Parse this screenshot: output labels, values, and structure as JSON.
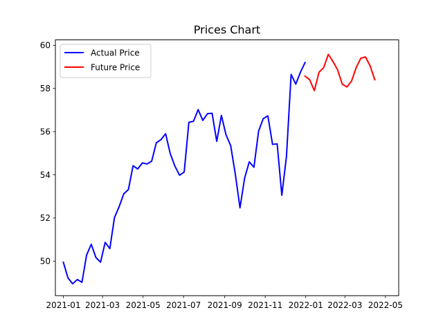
{
  "chart_data": {
    "type": "line",
    "title": "Prices Chart",
    "xlabel": "",
    "ylabel": "",
    "x_ticks": [
      "2021-01",
      "2021-03",
      "2021-05",
      "2021-07",
      "2021-09",
      "2021-11",
      "2022-01",
      "2022-03",
      "2022-05"
    ],
    "y_ticks": [
      "50",
      "52",
      "54",
      "56",
      "58",
      "60"
    ],
    "xlim": [
      "2020-12-20",
      "2022-05-21"
    ],
    "ylim": [
      48.4,
      60.25
    ],
    "grid": false,
    "legend_position": "upper-left",
    "series": [
      {
        "name": "Actual Price",
        "color": "#0000ff",
        "points": [
          [
            "2021-01-01",
            49.95
          ],
          [
            "2021-01-08",
            49.22
          ],
          [
            "2021-01-15",
            48.95
          ],
          [
            "2021-01-22",
            49.15
          ],
          [
            "2021-01-29",
            49.02
          ],
          [
            "2021-02-05",
            50.28
          ],
          [
            "2021-02-12",
            50.78
          ],
          [
            "2021-02-19",
            50.17
          ],
          [
            "2021-02-26",
            49.95
          ],
          [
            "2021-03-05",
            50.87
          ],
          [
            "2021-03-12",
            50.58
          ],
          [
            "2021-03-19",
            52.02
          ],
          [
            "2021-03-26",
            52.52
          ],
          [
            "2021-04-02",
            53.12
          ],
          [
            "2021-04-09",
            53.32
          ],
          [
            "2021-04-16",
            54.42
          ],
          [
            "2021-04-23",
            54.27
          ],
          [
            "2021-04-30",
            54.55
          ],
          [
            "2021-05-07",
            54.5
          ],
          [
            "2021-05-14",
            54.63
          ],
          [
            "2021-05-21",
            55.48
          ],
          [
            "2021-05-28",
            55.63
          ],
          [
            "2021-06-04",
            55.9
          ],
          [
            "2021-06-11",
            54.98
          ],
          [
            "2021-06-18",
            54.4
          ],
          [
            "2021-06-25",
            53.98
          ],
          [
            "2021-07-02",
            54.13
          ],
          [
            "2021-07-09",
            56.43
          ],
          [
            "2021-07-16",
            56.48
          ],
          [
            "2021-07-23",
            57.02
          ],
          [
            "2021-07-30",
            56.52
          ],
          [
            "2021-08-06",
            56.83
          ],
          [
            "2021-08-13",
            56.85
          ],
          [
            "2021-08-20",
            55.55
          ],
          [
            "2021-08-27",
            56.75
          ],
          [
            "2021-09-03",
            55.85
          ],
          [
            "2021-09-10",
            55.35
          ],
          [
            "2021-09-17",
            54.02
          ],
          [
            "2021-09-24",
            52.47
          ],
          [
            "2021-10-01",
            53.85
          ],
          [
            "2021-10-08",
            54.6
          ],
          [
            "2021-10-15",
            54.35
          ],
          [
            "2021-10-22",
            56.02
          ],
          [
            "2021-10-29",
            56.6
          ],
          [
            "2021-11-05",
            56.73
          ],
          [
            "2021-11-12",
            55.41
          ],
          [
            "2021-11-19",
            55.43
          ],
          [
            "2021-11-26",
            53.05
          ],
          [
            "2021-12-03",
            54.85
          ],
          [
            "2021-12-10",
            58.65
          ],
          [
            "2021-12-17",
            58.2
          ],
          [
            "2021-12-24",
            58.75
          ],
          [
            "2021-12-31",
            59.2
          ]
        ]
      },
      {
        "name": "Future Price",
        "color": "#ff0000",
        "points": [
          [
            "2021-12-31",
            58.57
          ],
          [
            "2022-01-07",
            58.4
          ],
          [
            "2022-01-14",
            57.9
          ],
          [
            "2022-01-21",
            58.75
          ],
          [
            "2022-01-28",
            58.96
          ],
          [
            "2022-02-04",
            59.58
          ],
          [
            "2022-02-11",
            59.25
          ],
          [
            "2022-02-18",
            58.86
          ],
          [
            "2022-02-25",
            58.2
          ],
          [
            "2022-03-04",
            58.07
          ],
          [
            "2022-03-11",
            58.34
          ],
          [
            "2022-03-18",
            58.97
          ],
          [
            "2022-03-25",
            59.4
          ],
          [
            "2022-04-01",
            59.46
          ],
          [
            "2022-04-08",
            59.04
          ],
          [
            "2022-04-15",
            58.4
          ]
        ]
      }
    ]
  }
}
